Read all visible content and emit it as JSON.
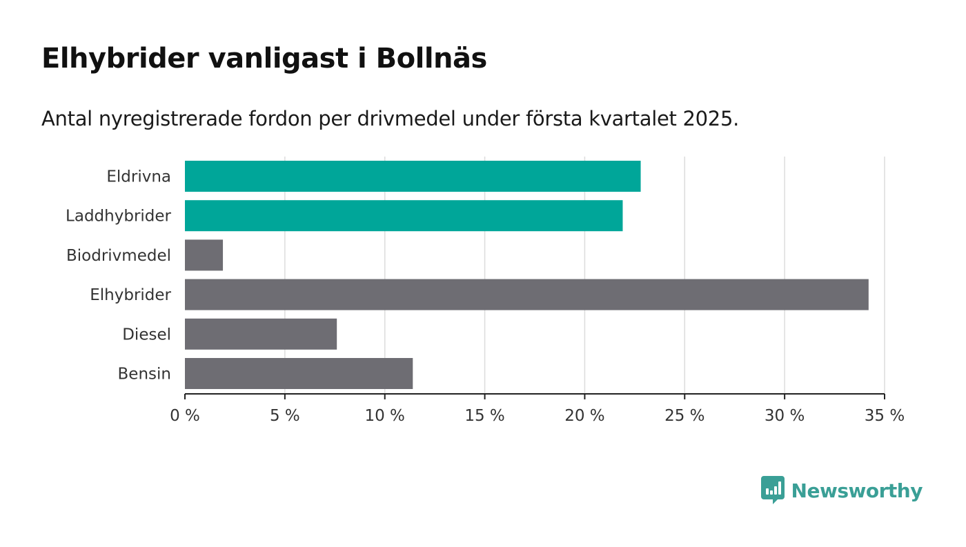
{
  "header": {
    "title": "Elhybrider vanligast i Bollnäs",
    "subtitle": "Antal nyregistrerade fordon per drivmedel under första kvartalet 2025."
  },
  "brand": {
    "name": "Newsworthy",
    "icon": "bar-chart-speech-bubble-icon",
    "color": "#3a9f96"
  },
  "colors": {
    "highlight": "#00a699",
    "default": "#6e6d73",
    "grid": "#dcdcdc",
    "axis": "#222222"
  },
  "chart_data": {
    "type": "bar",
    "orientation": "horizontal",
    "title": "Elhybrider vanligast i Bollnäs",
    "subtitle": "Antal nyregistrerade fordon per drivmedel under första kvartalet 2025.",
    "categories": [
      "Eldrivna",
      "Laddhybrider",
      "Biodrivmedel",
      "Elhybrider",
      "Diesel",
      "Bensin"
    ],
    "values": [
      22.8,
      21.9,
      1.9,
      34.2,
      7.6,
      11.4
    ],
    "highlighted": [
      true,
      true,
      false,
      false,
      false,
      false
    ],
    "unit": "%",
    "xlim": [
      0,
      35
    ],
    "xticks": [
      0,
      5,
      10,
      15,
      20,
      25,
      30,
      35
    ],
    "xtick_labels": [
      "0 %",
      "5 %",
      "10 %",
      "15 %",
      "20 %",
      "25 %",
      "30 %",
      "35 %"
    ],
    "xlabel": "",
    "ylabel": "",
    "grid": true,
    "legend": "none"
  }
}
